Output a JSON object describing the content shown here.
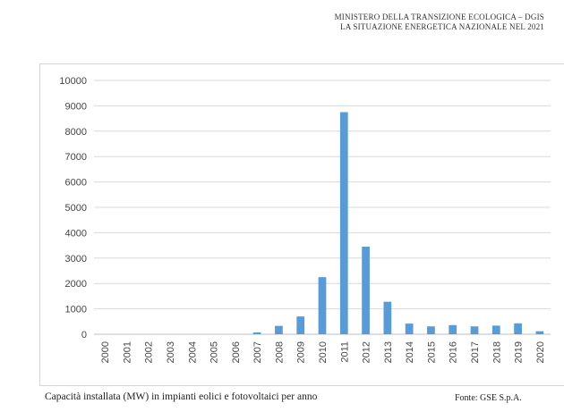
{
  "header": {
    "line1": "MINISTERO DELLA TRANSIZIONE ECOLOGICA – DGIS",
    "line2": "LA SITUAZIONE   ENERGETICA NAZIONALE NEL 2021"
  },
  "caption": "Capacità installata (MW) in impianti eolici e fotovoltaici per anno",
  "source": "Fonte: GSE S.p.A.",
  "chart_data": {
    "type": "bar",
    "title": "",
    "xlabel": "",
    "ylabel": "",
    "categories": [
      "2000",
      "2001",
      "2002",
      "2003",
      "2004",
      "2005",
      "2006",
      "2007",
      "2008",
      "2009",
      "2010",
      "2011",
      "2012",
      "2013",
      "2014",
      "2015",
      "2016",
      "2017",
      "2018",
      "2019",
      "2020"
    ],
    "values": [
      0,
      0,
      0,
      0,
      0,
      0,
      0,
      70,
      330,
      700,
      2250,
      8750,
      3450,
      1280,
      420,
      310,
      360,
      310,
      340,
      430,
      120
    ],
    "ylim": [
      0,
      10000
    ],
    "yticks": [
      0,
      1000,
      2000,
      3000,
      4000,
      5000,
      6000,
      7000,
      8000,
      9000,
      10000
    ],
    "grid": true,
    "legend": "none",
    "bar_color": "#5b9bd5",
    "grid_color": "#d9d9d9"
  }
}
